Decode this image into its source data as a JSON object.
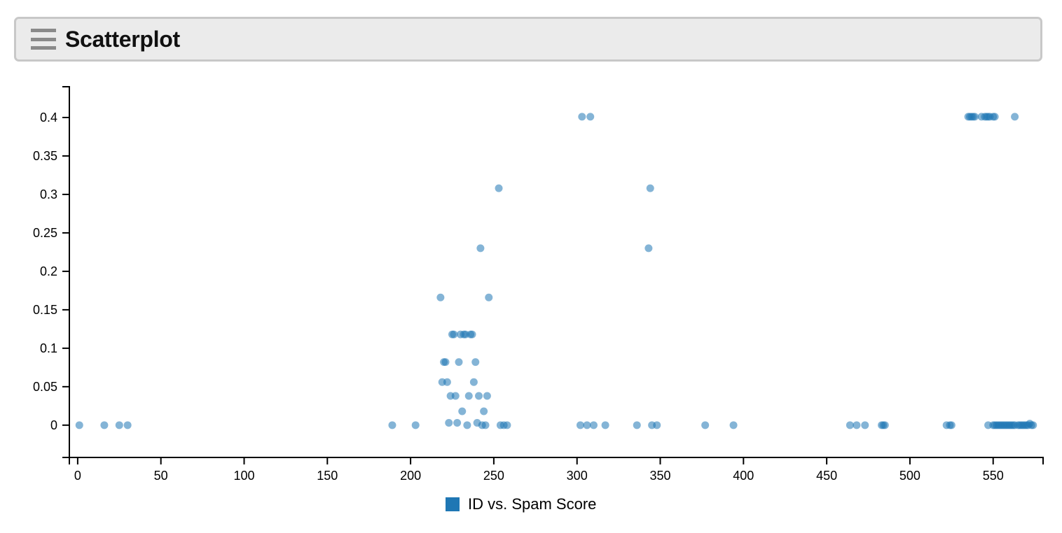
{
  "header": {
    "title": "Scatterplot",
    "menu_icon": "hamburger-menu-icon"
  },
  "colors": {
    "point": "#1f77b4",
    "legend_swatch": "#1f77b4",
    "header_bg": "#ebebeb",
    "axis": "#000000"
  },
  "chart_data": {
    "type": "scatter",
    "xlim": [
      -5,
      580
    ],
    "ylim": [
      -0.042,
      0.44
    ],
    "x_ticks": [
      0,
      50,
      100,
      150,
      200,
      250,
      300,
      350,
      400,
      450,
      500,
      550
    ],
    "y_ticks": [
      0,
      0.05,
      0.1,
      0.15,
      0.2,
      0.25,
      0.3,
      0.35,
      0.4
    ],
    "grid": false,
    "legend_position": "bottom-center",
    "series": [
      {
        "name": "ID vs. Spam Score",
        "points": [
          [
            1,
            0
          ],
          [
            16,
            0
          ],
          [
            25,
            0
          ],
          [
            30,
            0
          ],
          [
            189,
            0
          ],
          [
            203,
            0
          ],
          [
            218,
            0.166
          ],
          [
            219,
            0.056
          ],
          [
            220,
            0.082
          ],
          [
            221,
            0.082
          ],
          [
            222,
            0.056
          ],
          [
            223,
            0.003
          ],
          [
            224,
            0.038
          ],
          [
            225,
            0.118
          ],
          [
            226,
            0.118
          ],
          [
            227,
            0.038
          ],
          [
            228,
            0.003
          ],
          [
            229,
            0.082
          ],
          [
            230,
            0.118
          ],
          [
            231,
            0.018
          ],
          [
            232,
            0.118
          ],
          [
            233,
            0.118
          ],
          [
            234,
            0.0
          ],
          [
            235,
            0.038
          ],
          [
            236,
            0.118
          ],
          [
            237,
            0.118
          ],
          [
            238,
            0.056
          ],
          [
            239,
            0.082
          ],
          [
            240,
            0.003
          ],
          [
            241,
            0.038
          ],
          [
            242,
            0.23
          ],
          [
            243,
            0.0
          ],
          [
            244,
            0.018
          ],
          [
            245,
            0.0
          ],
          [
            246,
            0.038
          ],
          [
            247,
            0.166
          ],
          [
            253,
            0.308
          ],
          [
            254,
            0
          ],
          [
            256,
            0
          ],
          [
            258,
            0
          ],
          [
            302,
            0
          ],
          [
            303,
            0.401
          ],
          [
            306,
            0
          ],
          [
            308,
            0.401
          ],
          [
            310,
            0
          ],
          [
            317,
            0
          ],
          [
            336,
            0
          ],
          [
            343,
            0.23
          ],
          [
            344,
            0.308
          ],
          [
            345,
            0
          ],
          [
            348,
            0
          ],
          [
            377,
            0
          ],
          [
            394,
            0
          ],
          [
            464,
            0
          ],
          [
            468,
            0
          ],
          [
            473,
            0
          ],
          [
            483,
            0
          ],
          [
            484,
            0
          ],
          [
            485,
            0
          ],
          [
            522,
            0
          ],
          [
            524,
            0
          ],
          [
            525,
            0
          ],
          [
            535,
            0.401
          ],
          [
            536,
            0.401
          ],
          [
            537,
            0.401
          ],
          [
            538,
            0.401
          ],
          [
            539,
            0.401
          ],
          [
            543,
            0.401
          ],
          [
            545,
            0.401
          ],
          [
            546,
            0.401
          ],
          [
            547,
            0.401
          ],
          [
            548,
            0.401
          ],
          [
            550,
            0.401
          ],
          [
            551,
            0.401
          ],
          [
            563,
            0.401
          ],
          [
            547,
            0
          ],
          [
            550,
            0
          ],
          [
            551,
            0
          ],
          [
            552,
            0
          ],
          [
            553,
            0
          ],
          [
            554,
            0
          ],
          [
            555,
            0
          ],
          [
            556,
            0
          ],
          [
            557,
            0
          ],
          [
            558,
            0
          ],
          [
            559,
            0
          ],
          [
            560,
            0
          ],
          [
            561,
            0
          ],
          [
            562,
            0
          ],
          [
            563,
            0
          ],
          [
            565,
            0
          ],
          [
            566,
            0
          ],
          [
            567,
            0
          ],
          [
            568,
            0
          ],
          [
            569,
            0
          ],
          [
            570,
            0
          ],
          [
            571,
            0
          ],
          [
            572,
            0.002
          ],
          [
            573,
            0
          ],
          [
            574,
            0
          ]
        ]
      }
    ]
  }
}
